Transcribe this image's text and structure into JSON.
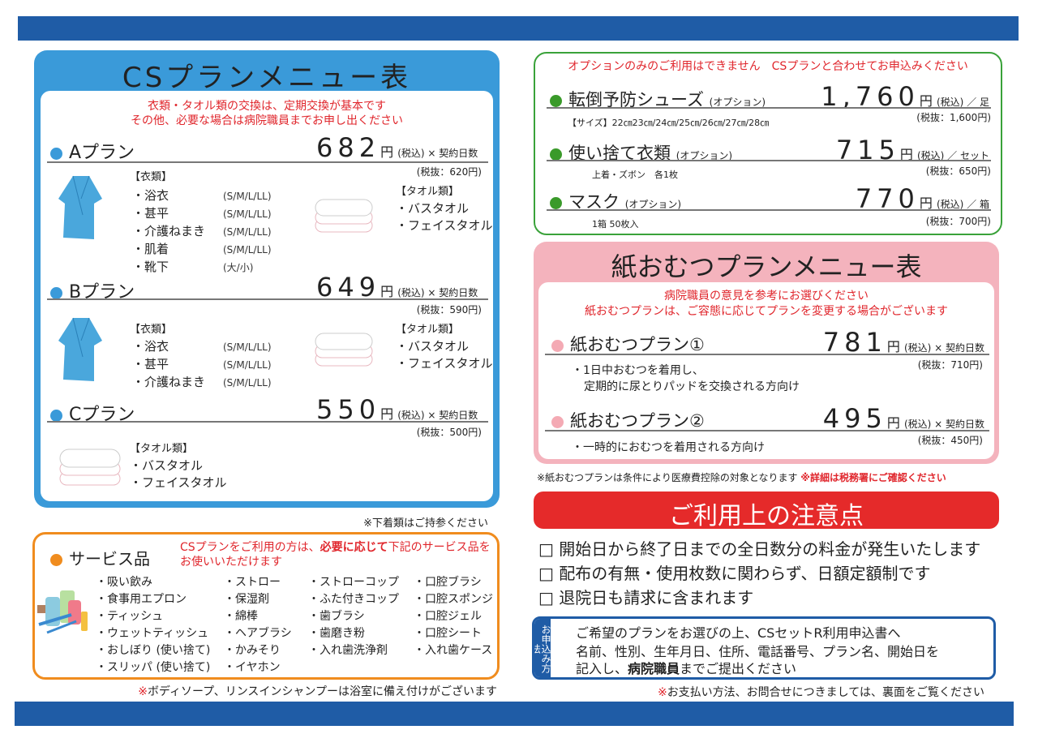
{
  "cs": {
    "title": "CSプランメニュー表",
    "note1": "衣類・タオル類の交換は、定期交換が基本です",
    "note2": "その他、必要な場合は病院職員までお申し出ください",
    "plans": [
      {
        "name": "Aプラン",
        "price": "682",
        "unit": "円",
        "tax": "(税込) × 契約日数",
        "excl": "(税抜：620円)",
        "clothes_label": "【衣類】",
        "clothes": [
          {
            "n": "・浴衣",
            "s": "(S/M/L/LL)"
          },
          {
            "n": "・甚平",
            "s": "(S/M/L/LL)"
          },
          {
            "n": "・介護ねまき",
            "s": "(S/M/L/LL)"
          },
          {
            "n": "・肌着",
            "s": "(S/M/L/LL)"
          },
          {
            "n": "・靴下",
            "s": "(大/小)"
          }
        ],
        "towel_label": "【タオル類】",
        "towels": [
          "・バスタオル",
          "・フェイスタオル"
        ]
      },
      {
        "name": "Bプラン",
        "price": "649",
        "unit": "円",
        "tax": "(税込) × 契約日数",
        "excl": "(税抜：590円)",
        "clothes_label": "【衣類】",
        "clothes": [
          {
            "n": "・浴衣",
            "s": "(S/M/L/LL)"
          },
          {
            "n": "・甚平",
            "s": "(S/M/L/LL)"
          },
          {
            "n": "・介護ねまき",
            "s": "(S/M/L/LL)"
          }
        ],
        "towel_label": "【タオル類】",
        "towels": [
          "・バスタオル",
          "・フェイスタオル"
        ]
      },
      {
        "name": "Cプラン",
        "price": "550",
        "unit": "円",
        "tax": "(税込) × 契約日数",
        "excl": "(税抜：500円)",
        "towel_label": "【タオル類】",
        "towels": [
          "・バスタオル",
          "・フェイスタオル"
        ]
      }
    ],
    "footnote": "※下着類はご持参ください"
  },
  "service": {
    "title": "サービス品",
    "note_a": "CSプランをご利用の方は、",
    "note_b": "必要に応じて",
    "note_c": "下記のサービス品を",
    "note2": "お使いいただけます",
    "cols": [
      [
        "・吸い飲み",
        "・食事用エプロン",
        "・ティッシュ",
        "・ウェットティッシュ",
        "・おしぼり (使い捨て)",
        "・スリッパ (使い捨て)"
      ],
      [
        "・ストロー",
        "・保湿剤",
        "・綿棒",
        "・ヘアブラシ",
        "・かみそり",
        "・イヤホン"
      ],
      [
        "・ストローコップ",
        "・ふた付きコップ",
        "・歯ブラシ",
        "・歯磨き粉",
        "・入れ歯洗浄剤"
      ],
      [
        "・口腔ブラシ",
        "・口腔スポンジ",
        "・口腔ジェル",
        "・口腔シート",
        "・入れ歯ケース"
      ]
    ],
    "footnote": "※ボディソープ、リンスインシャンプーは浴室に備え付けがございます"
  },
  "options": {
    "header": "オプションのみのご利用はできません　CSプランと合わせてお申込みください",
    "items": [
      {
        "name": "転倒予防シューズ",
        "tag": "(オプション)",
        "price": "1,760",
        "unit": "円",
        "tax": "(税込) ／ 足",
        "excl": "(税抜：1,600円)",
        "sub": "【サイズ】22㎝23㎝/24㎝/25㎝/26㎝/27㎝/28㎝"
      },
      {
        "name": "使い捨て衣類",
        "tag": "(オプション)",
        "price": "715",
        "unit": "円",
        "tax": "(税込) ／ セット",
        "excl": "(税抜：650円)",
        "sub": "上着・ズボン　各1枚"
      },
      {
        "name": "マスク",
        "tag": "(オプション)",
        "price": "770",
        "unit": "円",
        "tax": "(税込) ／ 箱",
        "excl": "(税抜：700円)",
        "sub": "1箱 50枚入"
      }
    ]
  },
  "diaper": {
    "title": "紙おむつプランメニュー表",
    "note1": "病院職員の意見を参考にお選びください",
    "note2": "紙おむつプランは、ご容態に応じてプランを変更する場合がございます",
    "plans": [
      {
        "name": "紙おむつプラン①",
        "price": "781",
        "unit": "円",
        "tax": "(税込) × 契約日数",
        "excl": "(税抜：710円)",
        "desc1": "・1日中おむつを着用し、",
        "desc2": "定期的に尿とりパッドを交換される方向け"
      },
      {
        "name": "紙おむつプラン②",
        "price": "495",
        "unit": "円",
        "tax": "(税込) × 契約日数",
        "excl": "(税抜：450円)",
        "desc1": "・一時的におむつを着用される方向け"
      }
    ],
    "footnote": "※紙おむつプランは条件により医療費控除の対象となります",
    "footnote_red": "※詳細は税務署にご確認ください"
  },
  "caution": {
    "title": "ご利用上の注意点",
    "items": [
      "□ 開始日から終了日までの全日数分の料金が発生いたします",
      "□ 配布の有無・使用枚数に関わらず、日額定額制です",
      "□ 退院日も請求に含まれます"
    ]
  },
  "apply": {
    "label": "お申込み方法",
    "line1": "ご希望のプランをお選びの上、CSセットR利用申込書へ",
    "line2": "名前、性別、生年月日、住所、電話番号、プラン名、開始日を",
    "line3a": "記入し、",
    "line3b": "病院職員",
    "line3c": "までご提出ください",
    "footnote": "※お支払い方法、お問合せにつきましては、裏面をご覧ください"
  },
  "colors": {
    "blue": "#3a9ad9",
    "navy": "#1f5ca6",
    "green": "#3aa23a",
    "orange": "#f08c1e",
    "pink": "#f4b3bd",
    "red": "#e52a2a"
  }
}
